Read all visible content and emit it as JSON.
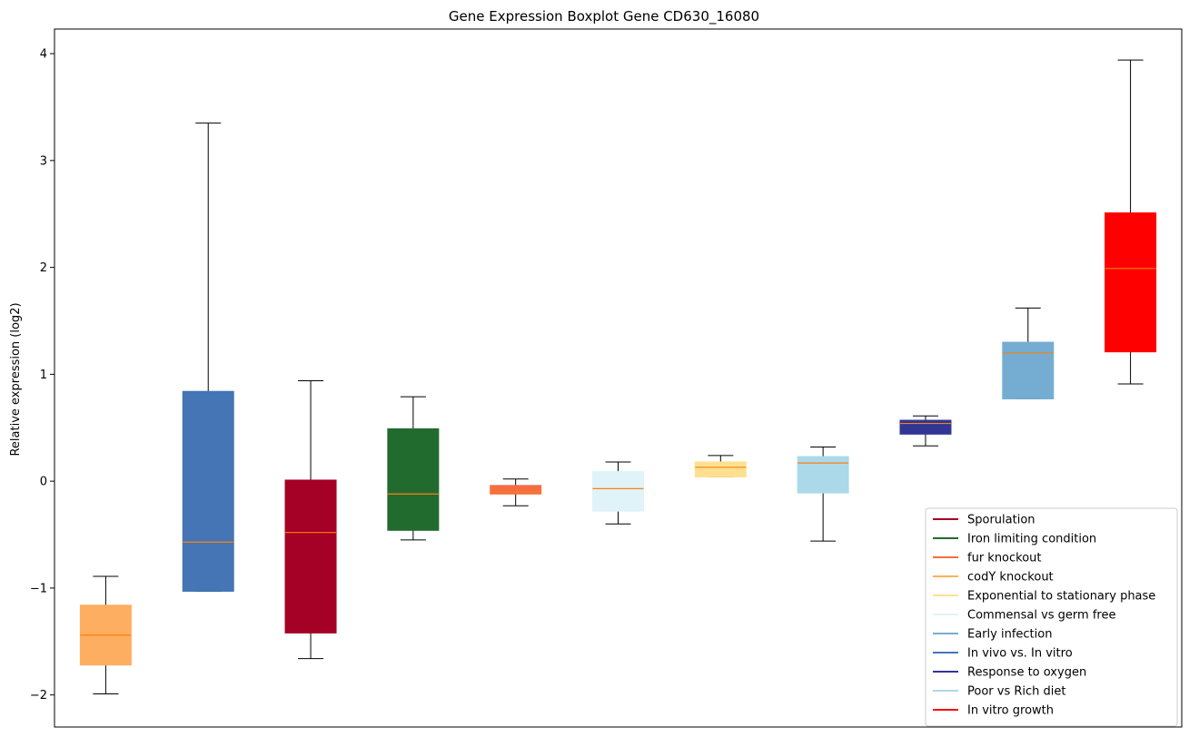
{
  "chart_data": {
    "type": "box",
    "title": "Gene Expression Boxplot Gene CD630_16080",
    "xlabel": "",
    "ylabel": "Relative expression (log2)",
    "ylim": [
      -2.3,
      4.23
    ],
    "yticks": [
      -2,
      -1,
      0,
      1,
      2,
      3,
      4
    ],
    "ytick_labels": [
      "−2",
      "−1",
      "0",
      "1",
      "2",
      "3",
      "4"
    ],
    "grid": false,
    "legend_position": "lower-right",
    "median_color": "#ff7f0e",
    "boxes": [
      {
        "series": "codY knockout",
        "color": "#fdae61",
        "whisker_low": -1.99,
        "q1": -1.72,
        "median": -1.44,
        "q3": -1.16,
        "whisker_high": -0.89
      },
      {
        "series": "In vivo vs. In vitro",
        "color": "#4575b4",
        "whisker_low": -1.03,
        "q1": -1.03,
        "median": -0.57,
        "q3": 0.84,
        "whisker_high": 3.35
      },
      {
        "series": "Sporulation",
        "color": "#a50026",
        "whisker_low": -1.66,
        "q1": -1.42,
        "median": -0.48,
        "q3": 0.01,
        "whisker_high": 0.94
      },
      {
        "series": "Iron limiting condition",
        "color": "#226b2f",
        "whisker_low": -0.55,
        "q1": -0.46,
        "median": -0.12,
        "q3": 0.49,
        "whisker_high": 0.79
      },
      {
        "series": "fur knockout",
        "color": "#f46d43",
        "whisker_low": -0.23,
        "q1": -0.12,
        "median": -0.1,
        "q3": -0.04,
        "whisker_high": 0.02
      },
      {
        "series": "Commensal vs germ free",
        "color": "#e0f3f8",
        "whisker_low": -0.4,
        "q1": -0.28,
        "median": -0.07,
        "q3": 0.09,
        "whisker_high": 0.18
      },
      {
        "series": "Exponential to stationary phase",
        "color": "#fee090",
        "whisker_low": 0.04,
        "q1": 0.04,
        "median": 0.13,
        "q3": 0.18,
        "whisker_high": 0.24
      },
      {
        "series": "Poor vs Rich diet",
        "color": "#abd9e9",
        "whisker_low": -0.56,
        "q1": -0.11,
        "median": 0.17,
        "q3": 0.23,
        "whisker_high": 0.32
      },
      {
        "series": "Response to oxygen",
        "color": "#313695",
        "whisker_low": 0.33,
        "q1": 0.44,
        "median": 0.54,
        "q3": 0.57,
        "whisker_high": 0.61
      },
      {
        "series": "Early infection",
        "color": "#74add1",
        "whisker_low": 0.77,
        "q1": 0.77,
        "median": 1.2,
        "q3": 1.3,
        "whisker_high": 1.62
      },
      {
        "series": "In vitro growth",
        "color": "#ff0000",
        "whisker_low": 0.91,
        "q1": 1.21,
        "median": 1.99,
        "q3": 2.51,
        "whisker_high": 3.94
      }
    ],
    "legend": [
      {
        "label": "Sporulation",
        "color": "#a50026"
      },
      {
        "label": "Iron limiting condition",
        "color": "#226b2f"
      },
      {
        "label": "fur knockout",
        "color": "#f46d43"
      },
      {
        "label": "codY knockout",
        "color": "#fdae61"
      },
      {
        "label": "Exponential to stationary phase",
        "color": "#fee090"
      },
      {
        "label": "Commensal vs germ free",
        "color": "#e0f3f8"
      },
      {
        "label": "Early infection",
        "color": "#74add1"
      },
      {
        "label": "In vivo vs. In vitro",
        "color": "#4575b4"
      },
      {
        "label": "Response to oxygen",
        "color": "#313695"
      },
      {
        "label": "Poor vs Rich diet",
        "color": "#abd9e9"
      },
      {
        "label": "In vitro growth",
        "color": "#ff0000"
      }
    ]
  }
}
